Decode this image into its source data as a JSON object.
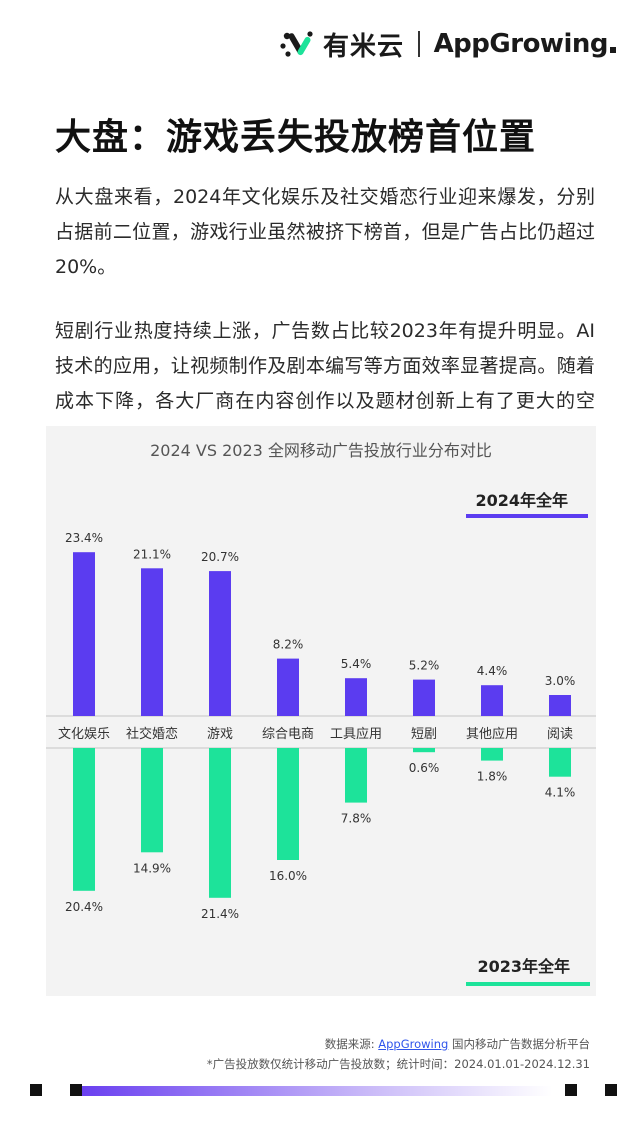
{
  "header": {
    "logo1_text": "有米云",
    "logo2_text": "AppGrowing"
  },
  "title": "大盘：游戏丢失投放榜首位置",
  "paragraphs": [
    "从大盘来看，2024年文化娱乐及社交婚恋行业迎来爆发，分别占据前二位置，游戏行业虽然被挤下榜首，但是广告占比仍超过20%。",
    "短剧行业热度持续上涨，广告数占比较2023年有提升明显。AI技术的应用，让视频制作及剧本编写等方面效率显著提高。随着成本下降，各大厂商在内容创作以及题材创新上有了更大的空间。"
  ],
  "chart_data": {
    "type": "bar",
    "title": "2024 VS 2023 全网移动广告投放行业分布对比",
    "categories": [
      "文化娱乐",
      "社交婚恋",
      "游戏",
      "综合电商",
      "工具应用",
      "短剧",
      "其他应用",
      "阅读"
    ],
    "series": [
      {
        "name": "2024年全年",
        "values": [
          23.4,
          21.1,
          20.7,
          8.2,
          5.4,
          5.2,
          4.4,
          3.0
        ],
        "labels": [
          "23.4%",
          "21.1%",
          "20.7%",
          "8.2%",
          "5.4%",
          "5.2%",
          "4.4%",
          "3.0%"
        ],
        "color": "#5b3cf0"
      },
      {
        "name": "2023年全年",
        "values": [
          20.4,
          14.9,
          21.4,
          16.0,
          7.8,
          0.6,
          1.8,
          4.1
        ],
        "labels": [
          "20.4%",
          "14.9%",
          "21.4%",
          "16.0%",
          "7.8%",
          "0.6%",
          "1.8%",
          "4.1%"
        ],
        "color": "#1de39a"
      }
    ],
    "legend_position": "right",
    "grid": false,
    "background": "#f3f3f3"
  },
  "footer": {
    "source_prefix": "数据来源: ",
    "source_link": "AppGrowing",
    "source_suffix": " 国内移动广告数据分析平台",
    "note": "*广告投放数仅统计移动广告投放数；统计时间：2024.01.01-2024.12.31"
  },
  "colors": {
    "purple": "#5b3cf0",
    "green": "#1de39a"
  }
}
